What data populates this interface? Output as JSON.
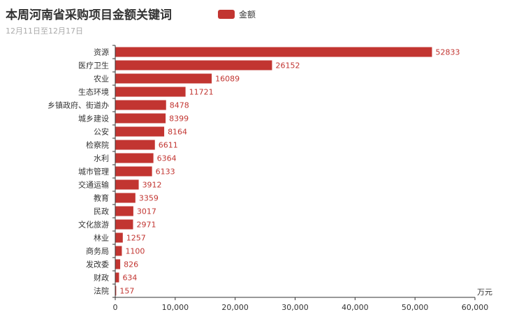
{
  "title": "本周河南省采购项目金额关键词",
  "subtitle": "12月11日至12月17日",
  "colors": {
    "bar": "#c23531",
    "axis": "#333333"
  },
  "chart_data": {
    "type": "bar",
    "orientation": "horizontal",
    "title": "本周河南省采购项目金额关键词",
    "subtitle": "12月11日至12月17日",
    "legend": {
      "position": "top-center",
      "entries": [
        "金额"
      ]
    },
    "series": [
      {
        "name": "金额",
        "values": [
          52833,
          26152,
          16089,
          11721,
          8478,
          8399,
          8164,
          6611,
          6364,
          6133,
          3912,
          3359,
          3017,
          2971,
          1257,
          1100,
          826,
          634,
          157
        ]
      }
    ],
    "categories": [
      "资源",
      "医疗卫生",
      "农业",
      "生态环境",
      "乡镇政府、街道办",
      "城乡建设",
      "公安",
      "检察院",
      "水利",
      "城市管理",
      "交通运输",
      "教育",
      "民政",
      "文化旅游",
      "林业",
      "商务局",
      "发改委",
      "财政",
      "法院"
    ],
    "xlabel": "万元",
    "xlim": [
      0,
      60000
    ],
    "xticks": [
      "0",
      "10,000",
      "20,000",
      "30,000",
      "40,000",
      "50,000",
      "60,000"
    ],
    "grid": false
  }
}
